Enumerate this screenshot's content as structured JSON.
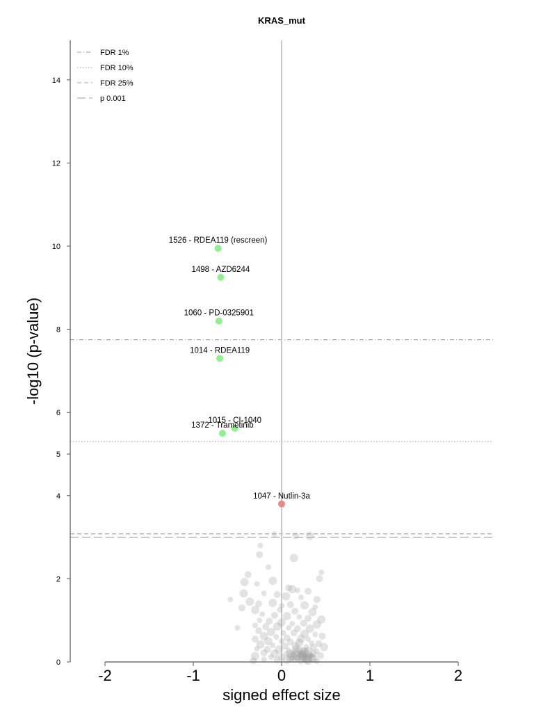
{
  "chart_data": {
    "type": "scatter",
    "title": "KRAS_mut",
    "xlabel": "signed effect size",
    "ylabel": "-log10 (p-value)",
    "xlim": [
      -2.4,
      2.4
    ],
    "ylim": [
      0,
      15
    ],
    "x_ticks": [
      "-2",
      "-1",
      "0",
      "1",
      "2"
    ],
    "y_ticks": [
      "0",
      "2",
      "4",
      "5",
      "6",
      "8",
      "10",
      "12",
      "14"
    ],
    "grid": false,
    "zero_line": true,
    "legend_position": "top-left",
    "thresholds": [
      {
        "name": "FDR 1%",
        "y": 7.75,
        "style": "dashdot"
      },
      {
        "name": "FDR 10%",
        "y": 5.3,
        "style": "dotted"
      },
      {
        "name": "FDR 25%",
        "y": 3.08,
        "style": "dashed"
      },
      {
        "name": "p 0.001",
        "y": 3.0,
        "style": "longdash"
      }
    ],
    "colors": {
      "sensitive": "#8ef08e",
      "resistant": "#e68a8a",
      "non_significant": "#9a9a9a",
      "threshold": "#9e9e9e",
      "zero_line": "#c8c8c8"
    },
    "labeled_points": [
      {
        "label": "1526 - RDEA119 (rescreen)",
        "x": -0.72,
        "y": 9.95,
        "group": "sensitive"
      },
      {
        "label": "1498 - AZD6244",
        "x": -0.69,
        "y": 9.25,
        "group": "sensitive"
      },
      {
        "label": "1060 - PD-0325901",
        "x": -0.71,
        "y": 8.2,
        "group": "sensitive"
      },
      {
        "label": "1014 - RDEA119",
        "x": -0.7,
        "y": 7.3,
        "group": "sensitive"
      },
      {
        "label": "1015 - CI-1040",
        "x": -0.53,
        "y": 5.62,
        "group": "sensitive"
      },
      {
        "label": "1372 - Trametinib",
        "x": -0.67,
        "y": 5.5,
        "group": "sensitive"
      },
      {
        "label": "1047 - Nutlin-3a",
        "x": 0.0,
        "y": 3.8,
        "group": "resistant"
      }
    ],
    "other_points": [
      [
        -0.08,
        3.07
      ],
      [
        0.16,
        3.03
      ],
      [
        0.32,
        3.03
      ],
      [
        -0.24,
        2.8
      ],
      [
        -0.25,
        2.58
      ],
      [
        0.14,
        2.5
      ],
      [
        -0.15,
        2.28
      ],
      [
        -0.38,
        2.1
      ],
      [
        -0.1,
        1.95
      ],
      [
        0.45,
        2.15
      ],
      [
        0.43,
        2.0
      ],
      [
        -0.42,
        1.92
      ],
      [
        -0.28,
        1.88
      ],
      [
        0.08,
        1.78
      ],
      [
        0.12,
        1.75
      ],
      [
        0.18,
        1.72
      ],
      [
        0.3,
        1.7
      ],
      [
        -0.43,
        1.65
      ],
      [
        -0.2,
        1.65
      ],
      [
        -0.05,
        1.62
      ],
      [
        0.05,
        1.58
      ],
      [
        0.22,
        1.55
      ],
      [
        0.4,
        1.5
      ],
      [
        -0.36,
        1.45
      ],
      [
        -0.58,
        1.5
      ],
      [
        -0.26,
        1.4
      ],
      [
        -0.1,
        1.42
      ],
      [
        0.0,
        1.35
      ],
      [
        0.1,
        1.38
      ],
      [
        0.26,
        1.36
      ],
      [
        0.38,
        1.32
      ],
      [
        -0.45,
        1.3
      ],
      [
        -0.3,
        1.25
      ],
      [
        -0.02,
        1.25
      ],
      [
        0.15,
        1.22
      ],
      [
        0.35,
        1.2
      ],
      [
        -0.22,
        1.15
      ],
      [
        -0.08,
        1.12
      ],
      [
        0.06,
        1.1
      ],
      [
        0.2,
        1.08
      ],
      [
        0.3,
        1.05
      ],
      [
        0.45,
        1.02
      ],
      [
        -0.25,
        1.0
      ],
      [
        -0.14,
        0.98
      ],
      [
        0.0,
        0.95
      ],
      [
        0.12,
        0.92
      ],
      [
        0.25,
        0.93
      ],
      [
        0.4,
        0.9
      ],
      [
        -0.3,
        0.88
      ],
      [
        -0.18,
        0.85
      ],
      [
        -0.05,
        0.85
      ],
      [
        0.08,
        0.82
      ],
      [
        0.18,
        0.8
      ],
      [
        0.32,
        0.8
      ],
      [
        -0.5,
        0.82
      ],
      [
        -0.26,
        0.75
      ],
      [
        -0.12,
        0.72
      ],
      [
        0.02,
        0.7
      ],
      [
        0.14,
        0.7
      ],
      [
        0.26,
        0.68
      ],
      [
        0.38,
        0.66
      ],
      [
        0.46,
        0.62
      ],
      [
        -0.2,
        0.62
      ],
      [
        -0.06,
        0.6
      ],
      [
        0.06,
        0.58
      ],
      [
        0.22,
        0.56
      ],
      [
        0.3,
        0.55
      ],
      [
        -0.3,
        0.55
      ],
      [
        -0.15,
        0.5
      ],
      [
        0.0,
        0.5
      ],
      [
        0.1,
        0.48
      ],
      [
        0.2,
        0.46
      ],
      [
        0.34,
        0.45
      ],
      [
        0.42,
        0.44
      ],
      [
        -0.24,
        0.42
      ],
      [
        -0.1,
        0.4
      ],
      [
        0.04,
        0.38
      ],
      [
        0.16,
        0.38
      ],
      [
        0.28,
        0.36
      ],
      [
        0.36,
        0.35
      ],
      [
        0.48,
        0.36
      ],
      [
        -0.28,
        0.32
      ],
      [
        -0.16,
        0.3
      ],
      [
        -0.03,
        0.3
      ],
      [
        0.08,
        0.28
      ],
      [
        0.2,
        0.28
      ],
      [
        0.3,
        0.26
      ],
      [
        0.4,
        0.25
      ],
      [
        -0.2,
        0.22
      ],
      [
        -0.08,
        0.2
      ],
      [
        0.05,
        0.2
      ],
      [
        0.14,
        0.18
      ],
      [
        0.24,
        0.18
      ],
      [
        0.34,
        0.16
      ],
      [
        0.44,
        0.15
      ],
      [
        -0.3,
        0.14
      ],
      [
        -0.12,
        0.12
      ],
      [
        0.0,
        0.12
      ],
      [
        0.1,
        0.1
      ],
      [
        0.18,
        0.1
      ],
      [
        0.26,
        0.08
      ],
      [
        0.36,
        0.08
      ],
      [
        -0.2,
        0.06
      ],
      [
        -0.05,
        0.05
      ],
      [
        0.06,
        0.05
      ],
      [
        0.15,
        0.04
      ],
      [
        0.22,
        0.03
      ],
      [
        0.3,
        0.03
      ],
      [
        0.4,
        0.02
      ],
      [
        -0.32,
        0.03
      ],
      [
        0.12,
        0.15
      ],
      [
        0.2,
        0.22
      ],
      [
        0.16,
        0.32
      ],
      [
        0.26,
        0.24
      ],
      [
        0.32,
        0.14
      ],
      [
        0.22,
        0.12
      ],
      [
        0.28,
        0.2
      ],
      [
        0.18,
        0.06
      ],
      [
        0.24,
        0.28
      ],
      [
        0.3,
        0.1
      ],
      [
        0.14,
        0.24
      ],
      [
        0.36,
        0.2
      ],
      [
        0.1,
        0.2
      ],
      [
        0.2,
        0.16
      ],
      [
        0.26,
        0.14
      ],
      [
        0.34,
        0.1
      ],
      [
        0.16,
        0.12
      ],
      [
        0.22,
        0.18
      ],
      [
        0.28,
        0.06
      ],
      [
        0.12,
        0.08
      ],
      [
        0.18,
        0.2
      ],
      [
        0.24,
        0.1
      ]
    ]
  }
}
